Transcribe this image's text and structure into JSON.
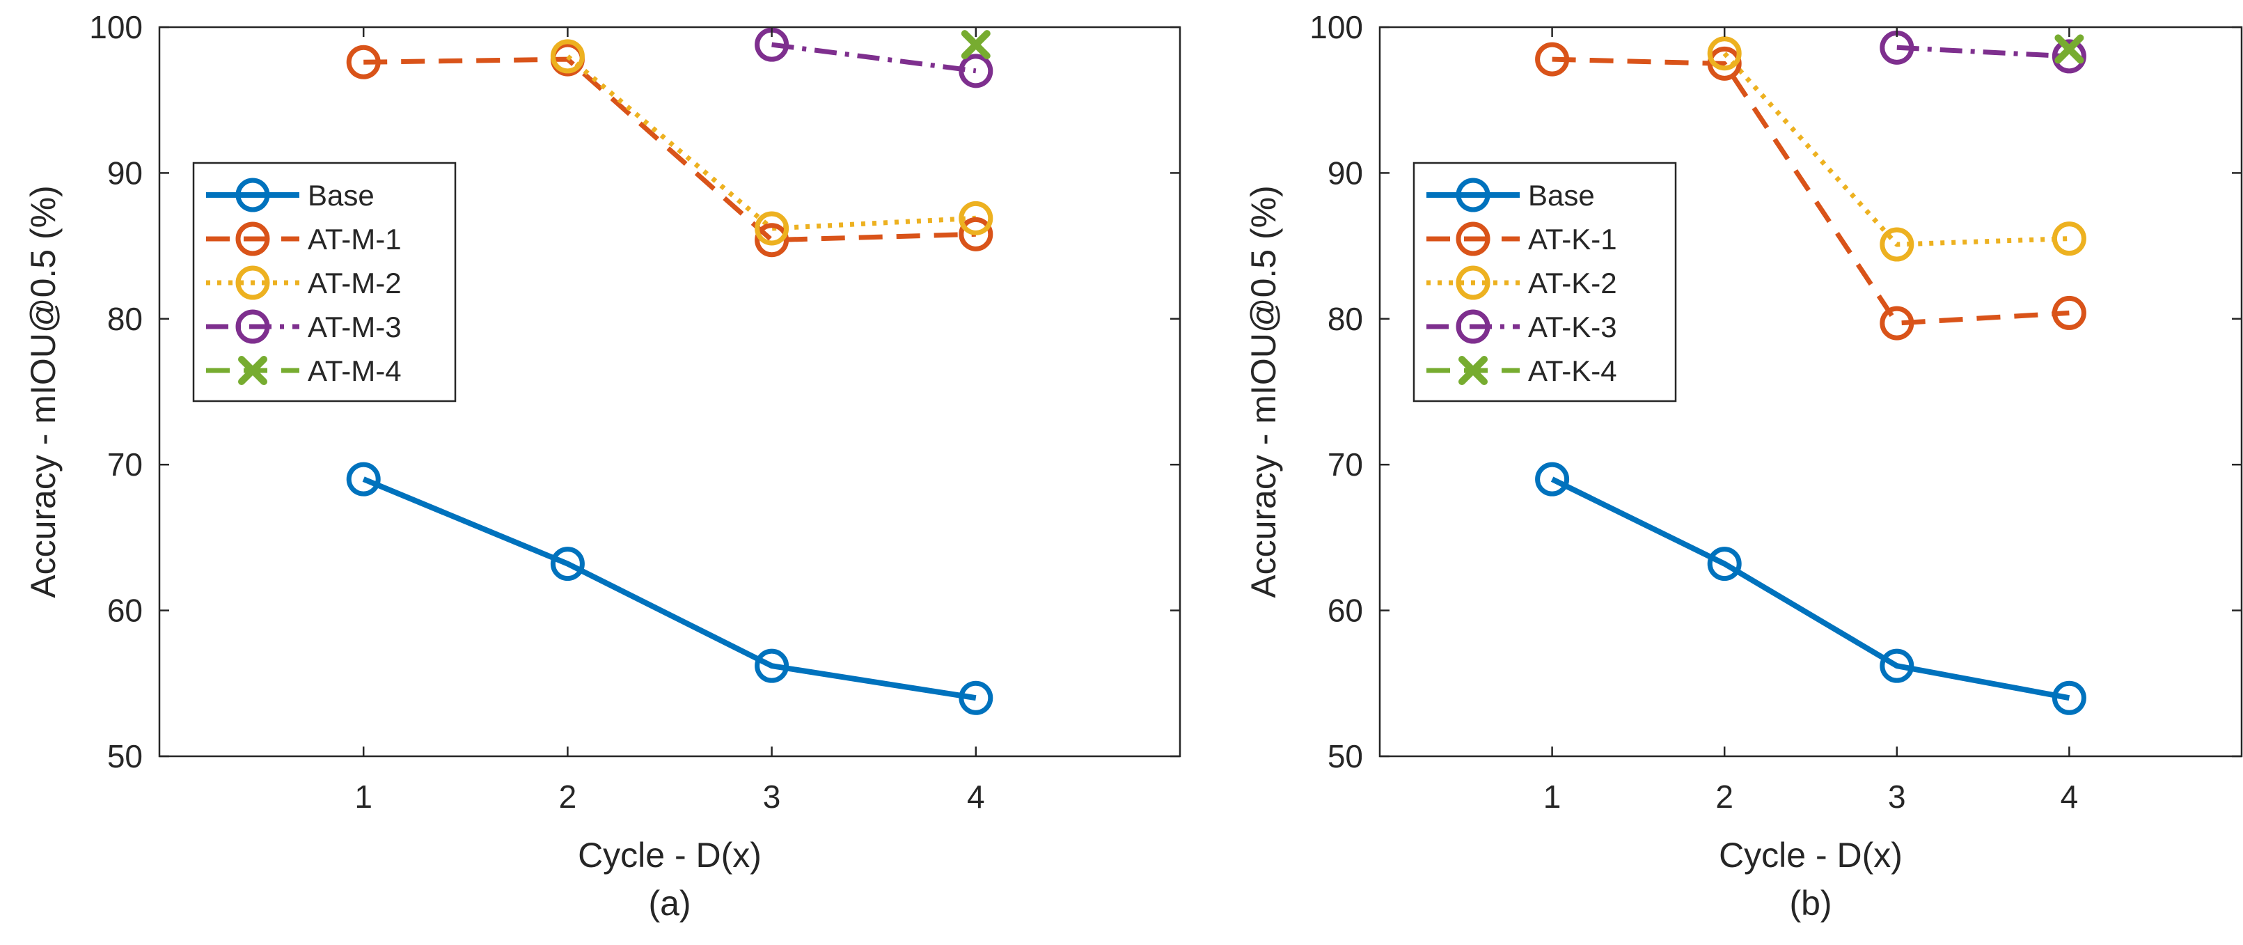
{
  "chart_data": [
    {
      "type": "line",
      "caption": "(a)",
      "xlabel": "Cycle - D(x)",
      "ylabel": "Accuracy - mIOU@0.5 (%)",
      "xlim": [
        0,
        5
      ],
      "ylim": [
        50,
        100
      ],
      "xticks": [
        "1",
        "2",
        "3",
        "4"
      ],
      "yticks": [
        "50",
        "60",
        "70",
        "80",
        "90",
        "100"
      ],
      "legend_position": "left",
      "series": [
        {
          "name": "Base",
          "x": [
            1,
            2,
            3,
            4
          ],
          "values": [
            69.0,
            63.2,
            56.2,
            54.0
          ],
          "color": "#0072BD",
          "style": "solid",
          "marker": "circle"
        },
        {
          "name": "AT-M-1",
          "x": [
            1,
            2,
            3,
            4
          ],
          "values": [
            97.6,
            97.8,
            85.4,
            85.8
          ],
          "color": "#D95319",
          "style": "dashed",
          "marker": "circle"
        },
        {
          "name": "AT-M-2",
          "x": [
            2,
            3,
            4
          ],
          "values": [
            98.0,
            86.2,
            86.9
          ],
          "color": "#EDB120",
          "style": "dotted",
          "marker": "circle"
        },
        {
          "name": "AT-M-3",
          "x": [
            3,
            4
          ],
          "values": [
            98.8,
            97.0
          ],
          "color": "#7E2F8E",
          "style": "dashdot",
          "marker": "circle"
        },
        {
          "name": "AT-M-4",
          "x": [
            4
          ],
          "values": [
            98.8
          ],
          "color": "#77AC30",
          "style": "dashed",
          "marker": "x"
        }
      ]
    },
    {
      "type": "line",
      "caption": "(b)",
      "xlabel": "Cycle - D(x)",
      "ylabel": "Accuracy - mIOU@0.5 (%)",
      "xlim": [
        0,
        5
      ],
      "ylim": [
        50,
        100
      ],
      "xticks": [
        "1",
        "2",
        "3",
        "4"
      ],
      "yticks": [
        "50",
        "60",
        "70",
        "80",
        "90",
        "100"
      ],
      "legend_position": "left",
      "series": [
        {
          "name": "Base",
          "x": [
            1,
            2,
            3,
            4
          ],
          "values": [
            69.0,
            63.2,
            56.2,
            54.0
          ],
          "color": "#0072BD",
          "style": "solid",
          "marker": "circle"
        },
        {
          "name": "AT-K-1",
          "x": [
            1,
            2,
            3,
            4
          ],
          "values": [
            97.8,
            97.5,
            79.7,
            80.4
          ],
          "color": "#D95319",
          "style": "dashed",
          "marker": "circle"
        },
        {
          "name": "AT-K-2",
          "x": [
            2,
            3,
            4
          ],
          "values": [
            98.2,
            85.1,
            85.5
          ],
          "color": "#EDB120",
          "style": "dotted",
          "marker": "circle"
        },
        {
          "name": "AT-K-3",
          "x": [
            3,
            4
          ],
          "values": [
            98.6,
            98.0
          ],
          "color": "#7E2F8E",
          "style": "dashdot",
          "marker": "circle"
        },
        {
          "name": "AT-K-4",
          "x": [
            4
          ],
          "values": [
            98.5
          ],
          "color": "#77AC30",
          "style": "dashed",
          "marker": "x"
        }
      ]
    }
  ]
}
